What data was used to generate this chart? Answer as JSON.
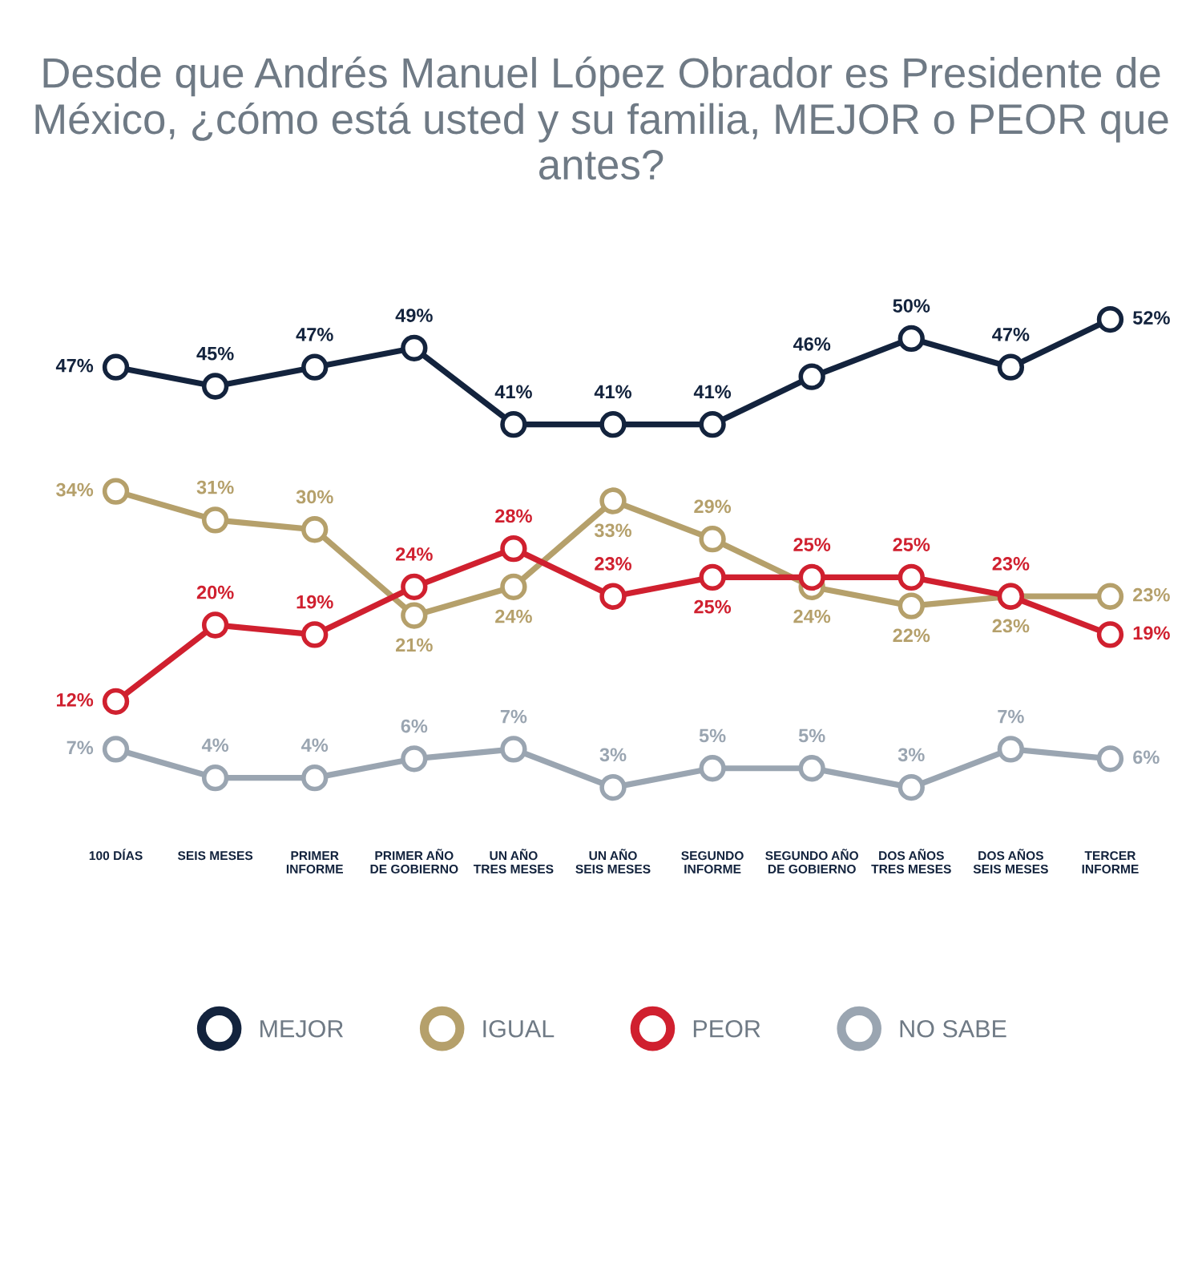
{
  "chart_data": {
    "type": "line",
    "title": "Desde que Andrés Manuel López Obrador es Presidente de México, ¿cómo está usted y su familia, MEJOR o PEOR que antes?",
    "categories": [
      "100 DÍAS",
      "SEIS MESES",
      "PRIMER\nINFORME",
      "PRIMER AÑO\nDE GOBIERNO",
      "UN AÑO\nTRES MESES",
      "UN AÑO\nSEIS MESES",
      "SEGUNDO\nINFORME",
      "SEGUNDO AÑO\nDE GOBIERNO",
      "DOS AÑOS\nTRES MESES",
      "DOS AÑOS\nSEIS MESES",
      "TERCER\nINFORME"
    ],
    "series": [
      {
        "name": "MEJOR",
        "color": "#13233d",
        "values": [
          47,
          45,
          47,
          49,
          41,
          41,
          41,
          46,
          50,
          47,
          52
        ],
        "value_labels": [
          "47%",
          "45%",
          "47%",
          "49%",
          "41%",
          "41%",
          "41%",
          "46%",
          "50%",
          "47%",
          "52%"
        ]
      },
      {
        "name": "IGUAL",
        "color": "#b5a06b",
        "values": [
          34,
          31,
          30,
          21,
          24,
          33,
          29,
          24,
          22,
          23,
          23
        ],
        "value_labels": [
          "34%",
          "31%",
          "30%",
          "21%",
          "24%",
          "33%",
          "29%",
          "24%",
          "22%",
          "23%",
          "23%"
        ]
      },
      {
        "name": "PEOR",
        "color": "#d0202f",
        "values": [
          12,
          20,
          19,
          24,
          28,
          23,
          25,
          25,
          25,
          23,
          19
        ],
        "value_labels": [
          "12%",
          "20%",
          "19%",
          "24%",
          "28%",
          "23%",
          "25%",
          "25%",
          "25%",
          "23%",
          "19%"
        ]
      },
      {
        "name": "NO SABE",
        "color": "#9aa5b1",
        "values": [
          7,
          4,
          4,
          6,
          7,
          3,
          5,
          5,
          3,
          7,
          6
        ],
        "value_labels": [
          "7%",
          "4%",
          "4%",
          "6%",
          "7%",
          "3%",
          "5%",
          "5%",
          "3%",
          "7%",
          "6%"
        ]
      }
    ],
    "marker": "circle",
    "line_style": "solid",
    "legend": "bottom",
    "tick_labels": "x"
  }
}
